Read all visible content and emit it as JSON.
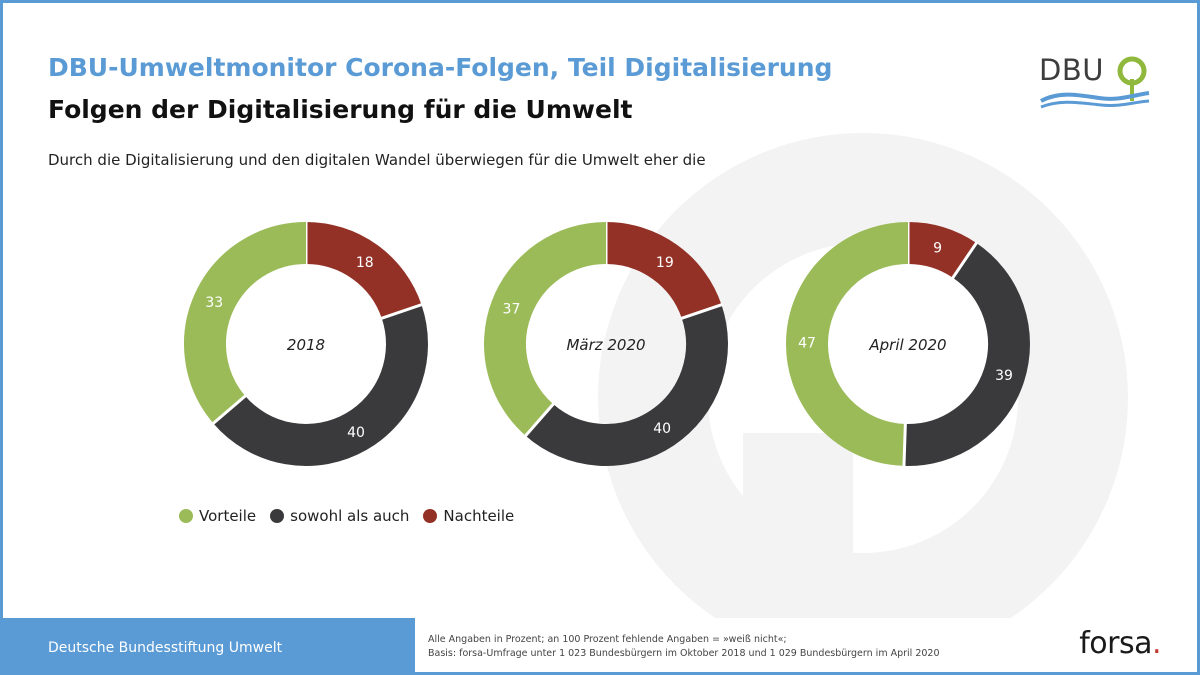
{
  "header": {
    "title": "DBU-Umweltmonitor Corona-Folgen, Teil Digitalisierung",
    "subtitle": "Folgen der Digitalisierung für die Umwelt",
    "question": "Durch die Digitalisierung und den digitalen Wandel überwiegen für die Umwelt eher die"
  },
  "logo": {
    "text": "DBU"
  },
  "colors": {
    "vorteile": "#9bbb59",
    "sowohl": "#3a3a3c",
    "nachteile": "#943127",
    "accent": "#5b9bd5"
  },
  "legend": [
    {
      "label": "Vorteile",
      "color": "#9bbb59"
    },
    {
      "label": "sowohl als auch",
      "color": "#3a3a3c"
    },
    {
      "label": "Nachteile",
      "color": "#943127"
    }
  ],
  "chart_data": [
    {
      "type": "pie",
      "title": "2018",
      "categories": [
        "Nachteile",
        "sowohl als auch",
        "Vorteile"
      ],
      "values": [
        18,
        40,
        33
      ]
    },
    {
      "type": "pie",
      "title": "März 2020",
      "categories": [
        "Nachteile",
        "sowohl als auch",
        "Vorteile"
      ],
      "values": [
        19,
        40,
        37
      ]
    },
    {
      "type": "pie",
      "title": "April 2020",
      "categories": [
        "Nachteile",
        "sowohl als auch",
        "Vorteile"
      ],
      "values": [
        9,
        39,
        47
      ]
    }
  ],
  "footer": {
    "org": "Deutsche Bundesstiftung Umwelt",
    "note_line1": "Alle Angaben in Prozent; an 100 Prozent fehlende Angaben = »weiß nicht«;",
    "note_line2": "Basis: forsa-Umfrage unter 1 023 Bundesbürgern im Oktober 2018 und 1 029 Bundesbürgern im April 2020",
    "brand": "forsa",
    "brand_dot": "."
  }
}
